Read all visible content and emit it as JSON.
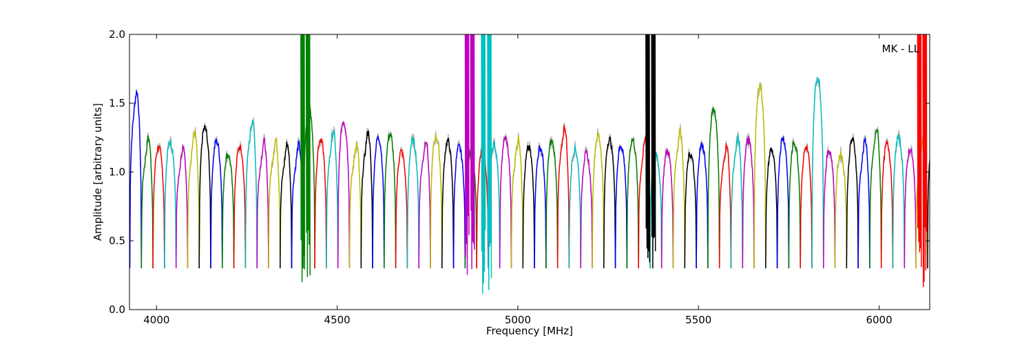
{
  "chart_data": {
    "type": "line",
    "title": "",
    "xlabel": "Frequency [MHz]",
    "ylabel": "Amplitude [arbitrary units]",
    "annotation": "MK - LL",
    "xlim": [
      3925,
      6140
    ],
    "ylim": [
      0.0,
      2.0
    ],
    "x_ticks": [
      "4000",
      "4500",
      "5000",
      "5500",
      "6000"
    ],
    "y_ticks": [
      "0.0",
      "0.5",
      "1.0",
      "1.5",
      "2.0"
    ],
    "grid": false,
    "legend": "none",
    "colors": [
      "#0000ff",
      "#008000",
      "#ff0000",
      "#00bfbf",
      "#bf00bf",
      "#bfbf00",
      "#000000"
    ],
    "background_series_color": "#bbbbbb",
    "band_width_mhz": 32,
    "band_start_mhz": 3926,
    "typical_band_peak": 1.22,
    "band_edge_min": 0.3,
    "band_highlights": [
      {
        "band": 0,
        "peak": 1.55
      },
      {
        "band": 6,
        "peak": 1.35
      },
      {
        "band": 10,
        "peak": 1.34
      },
      {
        "band": 15,
        "peak": 1.46
      },
      {
        "band": 18,
        "peak": 1.4
      },
      {
        "band": 50,
        "peak": 1.46
      },
      {
        "band": 54,
        "peak": 1.63
      },
      {
        "band": 59,
        "peak": 1.72
      }
    ],
    "rfi_spikes": [
      {
        "x": 4405,
        "color": "#008000",
        "low": 0.1
      },
      {
        "x": 4420,
        "color": "#008000",
        "low": 0.1
      },
      {
        "x": 4860,
        "color": "#bf00bf",
        "low": 0.22
      },
      {
        "x": 4875,
        "color": "#bf00bf",
        "low": 0.22
      },
      {
        "x": 4905,
        "color": "#00bfbf",
        "low": 0.1
      },
      {
        "x": 4922,
        "color": "#00bfbf",
        "low": 0.1
      },
      {
        "x": 5360,
        "color": "#000000",
        "low": 0.23
      },
      {
        "x": 5376,
        "color": "#000000",
        "low": 0.23
      },
      {
        "x": 6112,
        "color": "#ff0000",
        "low": 0.14
      },
      {
        "x": 6127,
        "color": "#ff0000",
        "low": 0.14
      }
    ]
  }
}
